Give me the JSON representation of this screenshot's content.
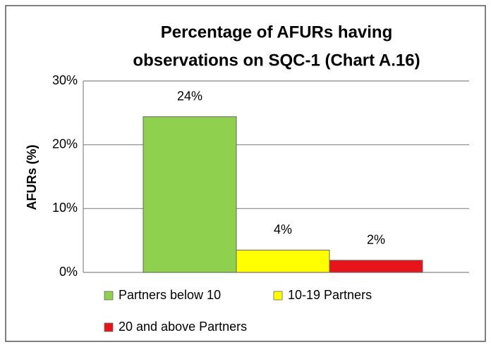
{
  "chart_data": {
    "type": "bar",
    "title": [
      "Percentage of AFURs having",
      "observations on SQC-1 (Chart A.16)"
    ],
    "ylabel": "AFURs (%)",
    "series": [
      {
        "name": "Partners below 10",
        "color": "#8fd14f",
        "values": [
          24.4
        ],
        "value_labels": [
          "24%"
        ]
      },
      {
        "name": "10-19 Partners",
        "color": "#ffff00",
        "values": [
          3.5
        ],
        "value_labels": [
          "4%"
        ]
      },
      {
        "name": "20 and above Partners",
        "color": "#e8141b",
        "values": [
          1.9
        ],
        "value_labels": [
          "2%"
        ]
      }
    ],
    "ylim": [
      0,
      30
    ],
    "yticks": [
      {
        "value": 0,
        "label": "0%"
      },
      {
        "value": 10,
        "label": "10%"
      },
      {
        "value": 20,
        "label": "20%"
      },
      {
        "value": 30,
        "label": "30%"
      }
    ],
    "grid": true,
    "legend": "bottom"
  }
}
